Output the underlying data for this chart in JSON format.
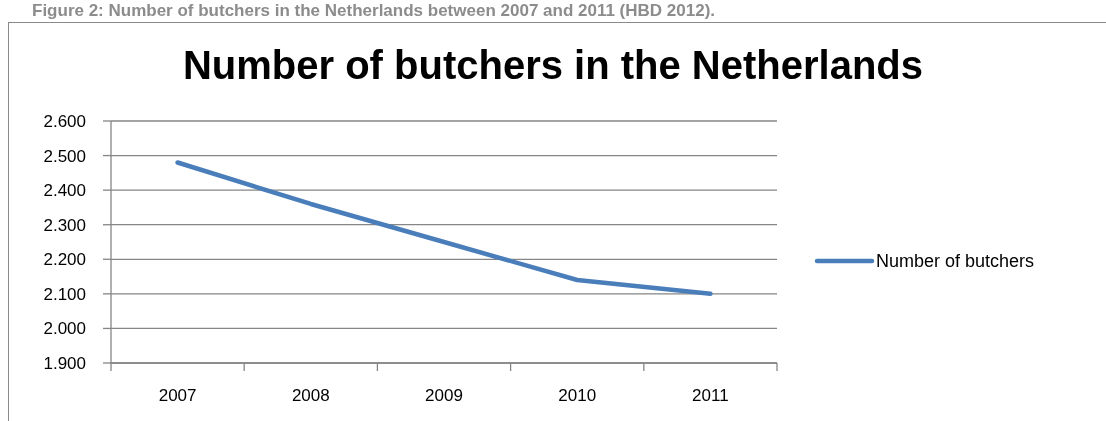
{
  "chart_data": {
    "type": "line",
    "title": "Number of butchers in the Netherlands",
    "annotations": [
      "Figure 2: Number of butchers in the Netherlands between 2007 and 2011 (HBD 2012)."
    ],
    "categories": [
      "2007",
      "2008",
      "2009",
      "2010",
      "2011"
    ],
    "series": [
      {
        "name": "Number of butchers",
        "color": "#4a7ebb",
        "values": [
          2480,
          2360,
          2250,
          2140,
          2100
        ]
      }
    ],
    "ylim": [
      1900,
      2600
    ],
    "yticks": [
      {
        "value": 1900,
        "label": "1.900"
      },
      {
        "value": 2000,
        "label": "2.000"
      },
      {
        "value": 2100,
        "label": "2.100"
      },
      {
        "value": 2200,
        "label": "2.200"
      },
      {
        "value": 2300,
        "label": "2.300"
      },
      {
        "value": 2400,
        "label": "2.400"
      },
      {
        "value": 2500,
        "label": "2.500"
      },
      {
        "value": 2600,
        "label": "2.600"
      }
    ],
    "grid": "y",
    "legend": "right",
    "line_style": "solid"
  }
}
